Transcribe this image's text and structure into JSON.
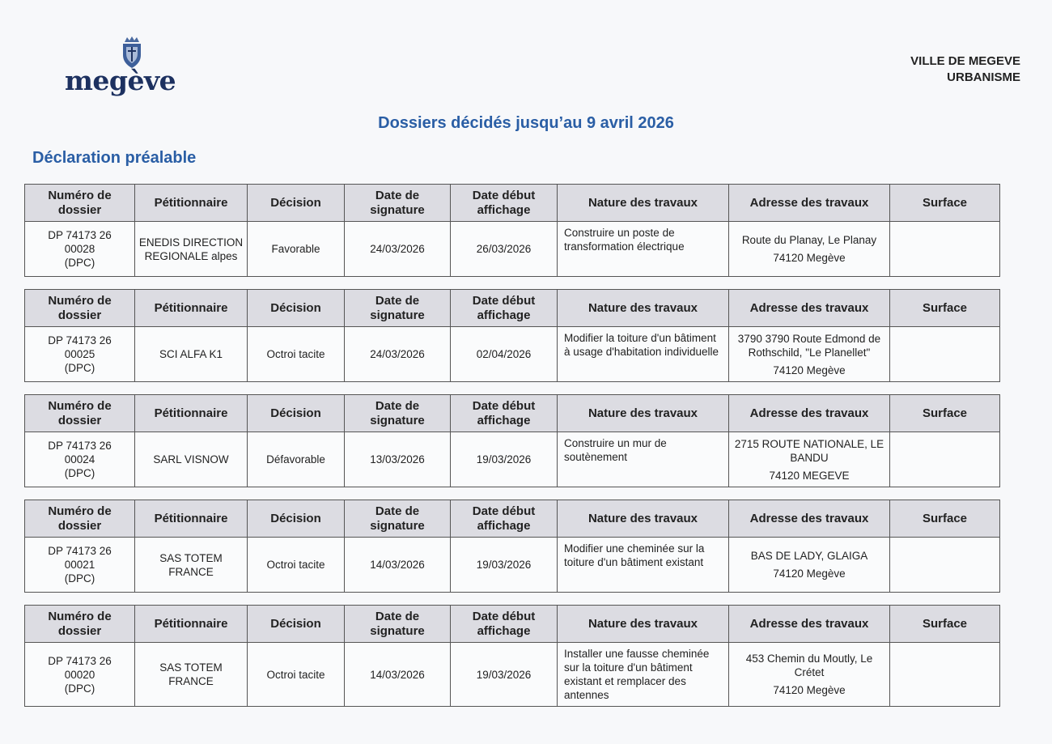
{
  "header": {
    "logo_text": "megève",
    "org_line1": "VILLE DE MEGEVE",
    "org_line2": "URBANISME",
    "brand_color": "#1d3160"
  },
  "title": "Dossiers décidés jusqu’au 9 avril 2026",
  "section_title": "Déclaration préalable",
  "columns": [
    "Numéro de dossier",
    "Pétitionnaire",
    "Décision",
    "Date de signature",
    "Date début affichage",
    "Nature des travaux",
    "Adresse des travaux",
    "Surface"
  ],
  "records": [
    {
      "numero": [
        "DP 74173 26",
        "00028",
        "(DPC)"
      ],
      "petitionnaire": "ENEDIS DIRECTION REGIONALE alpes",
      "decision": "Favorable",
      "date_signature": "24/03/2026",
      "date_affichage": "26/03/2026",
      "nature": "Construire un poste de transformation électrique",
      "adresse": "Route du Planay, Le Planay",
      "ville": "74120 Megève",
      "surface": ""
    },
    {
      "numero": [
        "DP 74173 26",
        "00025",
        "(DPC)"
      ],
      "petitionnaire": "SCI ALFA K1",
      "decision": "Octroi tacite",
      "date_signature": "24/03/2026",
      "date_affichage": "02/04/2026",
      "nature": "Modifier la toiture d'un bâtiment à usage d'habitation individuelle",
      "adresse": "3790 3790 Route Edmond de Rothschild, \"Le Planellet\"",
      "ville": "74120 Megève",
      "surface": ""
    },
    {
      "numero": [
        "DP 74173 26",
        "00024",
        "(DPC)"
      ],
      "petitionnaire": "SARL VISNOW",
      "decision": "Défavorable",
      "date_signature": "13/03/2026",
      "date_affichage": "19/03/2026",
      "nature": "Construire un mur de soutènement",
      "adresse": "2715 ROUTE NATIONALE, LE BANDU",
      "ville": "74120 MEGEVE",
      "surface": ""
    },
    {
      "numero": [
        "DP 74173 26",
        "00021",
        "(DPC)"
      ],
      "petitionnaire": "SAS TOTEM FRANCE",
      "decision": "Octroi tacite",
      "date_signature": "14/03/2026",
      "date_affichage": "19/03/2026",
      "nature": "Modifier une cheminée sur la toiture d'un bâtiment existant",
      "adresse": "BAS DE LADY, GLAIGA",
      "ville": "74120 Megève",
      "surface": ""
    },
    {
      "numero": [
        "DP 74173 26",
        "00020",
        "(DPC)"
      ],
      "petitionnaire": "SAS TOTEM FRANCE",
      "decision": "Octroi tacite",
      "date_signature": "14/03/2026",
      "date_affichage": "19/03/2026",
      "nature": "Installer une fausse cheminée sur la toiture d'un bâtiment existant et remplacer des antennes",
      "adresse": "453 Chemin du Moutly, Le Crétet",
      "ville": "74120 Megève",
      "surface": ""
    }
  ]
}
